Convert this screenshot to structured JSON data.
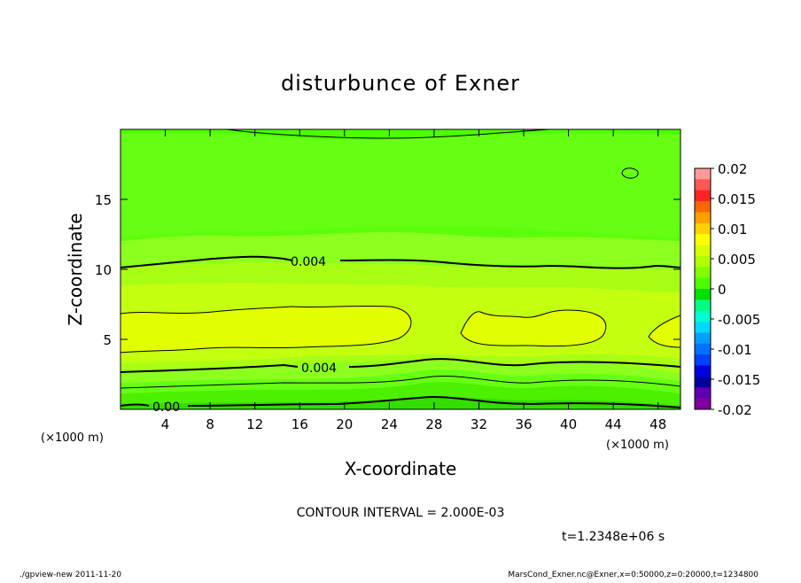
{
  "chart_data": {
    "type": "heatmap",
    "title": "disturbunce of Exner",
    "xlabel": "X-coordinate",
    "ylabel": "Z-coordinate",
    "x_unit": "(×1000 m)",
    "y_unit": "(×1000 m)",
    "xlim": [
      0,
      50
    ],
    "ylim": [
      0,
      20
    ],
    "x_ticks": [
      4,
      8,
      12,
      16,
      20,
      24,
      28,
      32,
      36,
      40,
      44,
      48
    ],
    "y_ticks": [
      5,
      10,
      15
    ],
    "colorbar": {
      "ticks": [
        "0.02",
        "0.015",
        "0.01",
        "0.005",
        "0",
        "-0.005",
        "-0.01",
        "-0.015",
        "-0.02"
      ],
      "range": [
        -0.02,
        0.02
      ],
      "bands": [
        "#ff9999",
        "#ff5555",
        "#ff2222",
        "#ff6600",
        "#ffa000",
        "#ffd000",
        "#ffff00",
        "#d8ff00",
        "#b0ff00",
        "#80ff00",
        "#4cff00",
        "#00e000",
        "#00ff80",
        "#00ffd0",
        "#00d8ff",
        "#00a0ff",
        "#0070ff",
        "#0040ff",
        "#0000e0",
        "#0000a0",
        "#6000b0",
        "#8000a0"
      ]
    },
    "contour_labels": [
      "0.004",
      "0.004",
      "0.00"
    ],
    "contour_interval": "CONTOUR INTERVAL = 2.000E-03",
    "time_label": "t=1.2348e+06 s"
  },
  "footer": {
    "left": "./gpview-new   2011-11-20",
    "right": "MarsCond_Exner.nc@Exner,x=0:50000,z=0:20000,t=1234800"
  }
}
